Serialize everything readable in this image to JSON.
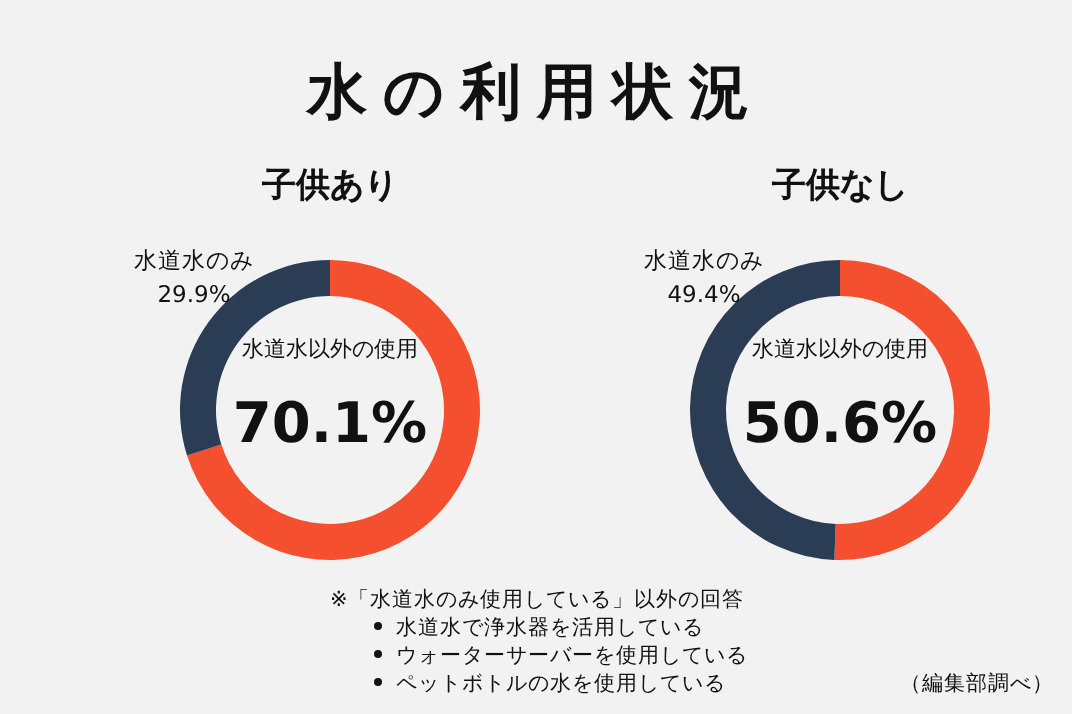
{
  "chart_data": [
    {
      "type": "donut",
      "title": "水の利用状況",
      "subtitle": "子供あり",
      "categories": [
        "水道水以外の使用",
        "水道水のみ"
      ],
      "values": [
        70.1,
        29.9
      ],
      "colors": [
        "#f4502f",
        "#2b3d55"
      ],
      "value_labels": [
        "70.1%",
        "29.9%"
      ],
      "legend": false,
      "annotations": [
        "※「水道水のみ使用している」以外の回答",
        "水道水で浄水器を活用している",
        "ウォーターサーバーを使用している",
        "ペットボトルの水を使用している",
        "（編集部調べ）"
      ]
    },
    {
      "type": "donut",
      "subtitle": "子供なし",
      "categories": [
        "水道水以外の使用",
        "水道水のみ"
      ],
      "values": [
        50.6,
        49.4
      ],
      "colors": [
        "#f4502f",
        "#2b3d55"
      ],
      "value_labels": [
        "50.6%",
        "49.4%"
      ],
      "legend": false
    }
  ]
}
